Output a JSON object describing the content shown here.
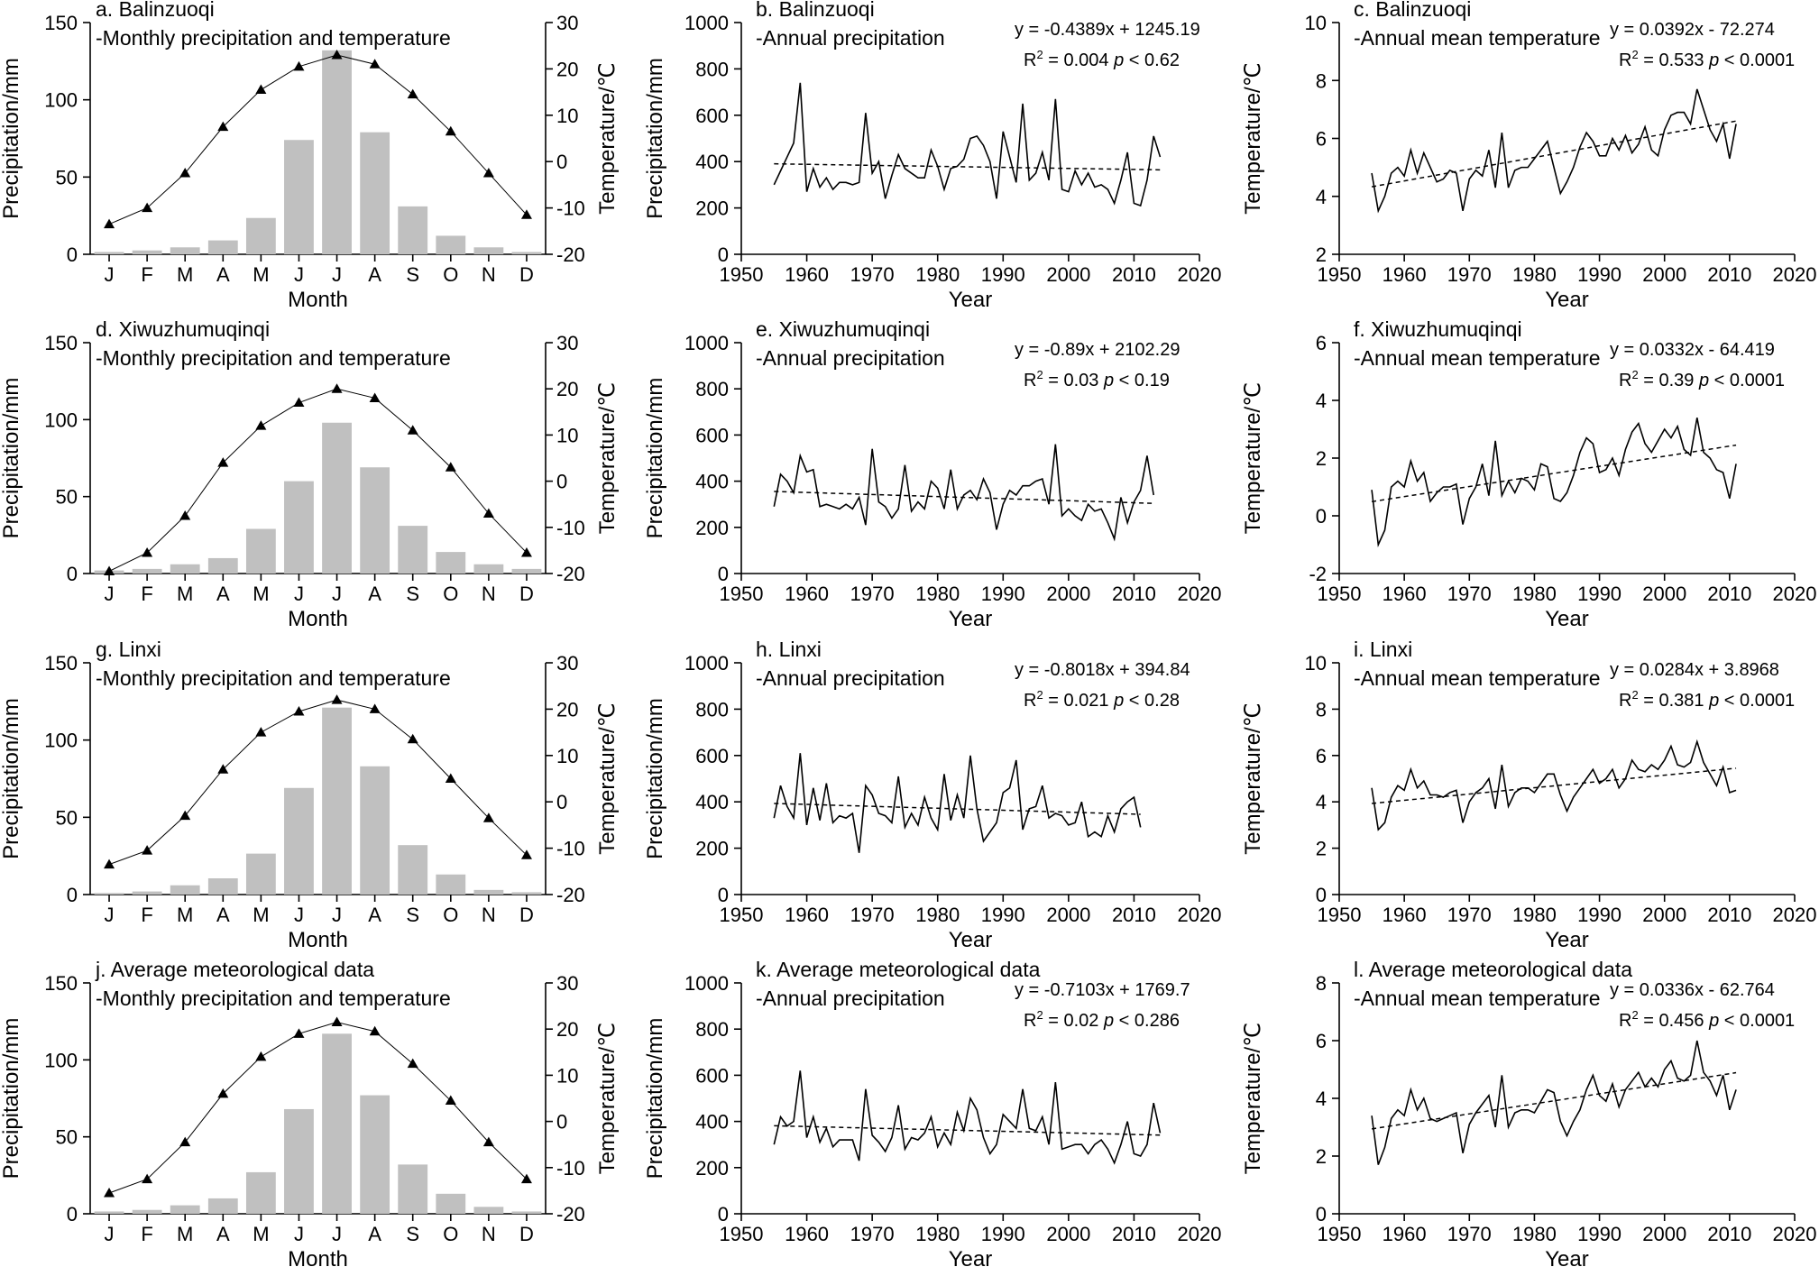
{
  "colors": {
    "bars": "#c0c0c0",
    "ink": "#000000"
  },
  "chart_data": [
    {
      "id": "a",
      "type": "bar+line",
      "title": "a. Balinzuoqi",
      "subtitle": "-Monthly precipitation and temperature",
      "xlabel": "Month",
      "ylabel": "Precipitation/mm",
      "y2label": "Temperature/℃",
      "categories": [
        "J",
        "F",
        "M",
        "A",
        "M",
        "J",
        "J",
        "A",
        "S",
        "O",
        "N",
        "D"
      ],
      "ylim": [
        0,
        150
      ],
      "yticks": [
        0,
        50,
        100,
        150
      ],
      "y2lim": [
        -20,
        30
      ],
      "y2ticks": [
        -20,
        -10,
        0,
        10,
        20,
        30
      ],
      "series": [
        {
          "kind": "bar",
          "axis": "left",
          "values": [
            1.5,
            2.5,
            4.5,
            9,
            23.5,
            74,
            132,
            79,
            31,
            12,
            4.5,
            1.5
          ]
        },
        {
          "kind": "line",
          "axis": "right",
          "marker": "triangle",
          "values": [
            -13.5,
            -10,
            -2.5,
            7.5,
            15.5,
            20.5,
            23,
            21,
            14.5,
            6.5,
            -2.5,
            -11.5
          ]
        }
      ]
    },
    {
      "id": "b",
      "type": "line",
      "title": "b. Balinzuoqi",
      "subtitle": "-Annual precipitation",
      "equation": "y = -0.4389x + 1245.19",
      "r2_prefix": "R",
      "r2_sup": "2",
      "r2_value": " = 0.004  ",
      "p_label": "p",
      "p_value": " < 0.62",
      "xlabel": "Year",
      "ylabel": "Precipitation/mm",
      "xlim": [
        1950,
        2020
      ],
      "xticks": [
        1950,
        1960,
        1970,
        1980,
        1990,
        2000,
        2010,
        2020
      ],
      "ylim": [
        0,
        1000
      ],
      "yticks": [
        0,
        200,
        400,
        600,
        800,
        1000
      ],
      "x_start": 1955,
      "values": [
        300,
        360,
        420,
        480,
        740,
        270,
        370,
        290,
        330,
        280,
        310,
        310,
        300,
        310,
        610,
        350,
        400,
        240,
        340,
        430,
        370,
        350,
        330,
        330,
        450,
        380,
        280,
        370,
        380,
        410,
        500,
        510,
        470,
        400,
        240,
        530,
        420,
        310,
        650,
        320,
        350,
        440,
        320,
        670,
        280,
        270,
        360,
        300,
        350,
        290,
        300,
        280,
        220,
        320,
        440,
        220,
        210,
        320,
        510,
        420
      ],
      "trend": [
        390.4,
        364.5
      ]
    },
    {
      "id": "c",
      "type": "line",
      "title": "c. Balinzuoqi",
      "subtitle": "-Annual mean temperature",
      "equation": "y = 0.0392x - 72.274",
      "r2_prefix": "R",
      "r2_sup": "2",
      "r2_value": " = 0.533  ",
      "p_label": "p",
      "p_value": " < 0.0001",
      "xlabel": "Year",
      "ylabel": "Temperature/℃",
      "xlim": [
        1950,
        2020
      ],
      "xticks": [
        1950,
        1960,
        1970,
        1980,
        1990,
        2000,
        2010,
        2020
      ],
      "ylim": [
        2,
        10
      ],
      "yticks": [
        2,
        4,
        6,
        8,
        10
      ],
      "x_start": 1955,
      "values": [
        4.8,
        3.5,
        4.0,
        4.8,
        5.0,
        4.7,
        5.6,
        4.8,
        5.5,
        5.0,
        4.5,
        4.6,
        4.9,
        4.8,
        3.5,
        4.6,
        4.9,
        4.7,
        5.6,
        4.3,
        6.2,
        4.3,
        4.9,
        5.0,
        5.0,
        5.3,
        5.6,
        5.9,
        5.0,
        4.1,
        4.5,
        5.0,
        5.7,
        6.2,
        5.9,
        5.4,
        5.4,
        6.0,
        5.6,
        6.1,
        5.5,
        5.8,
        6.4,
        5.6,
        5.4,
        6.3,
        6.8,
        6.9,
        6.9,
        6.5,
        7.7,
        7.0,
        6.3,
        5.9,
        6.5,
        5.3,
        6.5
      ],
      "trend": [
        4.33,
        6.6
      ]
    },
    {
      "id": "d",
      "type": "bar+line",
      "title": "d. Xiwuzhumuqinqi",
      "subtitle": "-Monthly precipitation and temperature",
      "xlabel": "Month",
      "ylabel": "Precipitation/mm",
      "y2label": "Temperature/℃",
      "categories": [
        "J",
        "F",
        "M",
        "A",
        "M",
        "J",
        "J",
        "A",
        "S",
        "O",
        "N",
        "D"
      ],
      "ylim": [
        0,
        150
      ],
      "yticks": [
        0,
        50,
        100,
        150
      ],
      "y2lim": [
        -20,
        30
      ],
      "y2ticks": [
        -20,
        -10,
        0,
        10,
        20,
        30
      ],
      "series": [
        {
          "kind": "bar",
          "axis": "left",
          "values": [
            2,
            3,
            6,
            10,
            29,
            60,
            98,
            69,
            31,
            14,
            6,
            3
          ]
        },
        {
          "kind": "line",
          "axis": "right",
          "marker": "triangle",
          "values": [
            -19.5,
            -15.5,
            -7.5,
            4,
            12,
            17,
            20,
            18,
            11,
            3,
            -7,
            -15.5
          ]
        }
      ]
    },
    {
      "id": "e",
      "type": "line",
      "title": "e. Xiwuzhumuqinqi",
      "subtitle": "-Annual precipitation",
      "equation": "y = -0.89x + 2102.29",
      "r2_prefix": "R",
      "r2_sup": "2",
      "r2_value": " = 0.03  ",
      "p_label": "p",
      "p_value": " < 0.19",
      "xlabel": "Year",
      "ylabel": "Precipitation/mm",
      "xlim": [
        1950,
        2020
      ],
      "xticks": [
        1950,
        1960,
        1970,
        1980,
        1990,
        2000,
        2010,
        2020
      ],
      "ylim": [
        0,
        1000
      ],
      "yticks": [
        0,
        200,
        400,
        600,
        800,
        1000
      ],
      "x_start": 1955,
      "values": [
        290,
        430,
        400,
        350,
        510,
        440,
        450,
        290,
        300,
        290,
        280,
        300,
        280,
        330,
        210,
        540,
        310,
        290,
        240,
        280,
        470,
        270,
        310,
        280,
        400,
        370,
        280,
        450,
        280,
        340,
        360,
        320,
        410,
        350,
        190,
        300,
        360,
        340,
        380,
        380,
        400,
        410,
        300,
        560,
        250,
        280,
        250,
        230,
        300,
        270,
        280,
        220,
        150,
        330,
        220,
        310,
        360,
        510,
        340
      ],
      "trend": [
        355.6,
        303.9
      ]
    },
    {
      "id": "f",
      "type": "line",
      "title": "f. Xiwuzhumuqinqi",
      "subtitle": "-Annual mean temperature",
      "equation": "y = 0.0332x - 64.419",
      "r2_prefix": "R",
      "r2_sup": "2",
      "r2_value": " = 0.39  ",
      "p_label": "p",
      "p_value": " < 0.0001",
      "xlabel": "Year",
      "ylabel": "Temperature/℃",
      "xlim": [
        1950,
        2020
      ],
      "xticks": [
        1950,
        1960,
        1970,
        1980,
        1990,
        2000,
        2010,
        2020
      ],
      "ylim": [
        -2,
        6
      ],
      "yticks": [
        -2,
        0,
        2,
        4,
        6
      ],
      "x_start": 1955,
      "values": [
        0.9,
        -1.0,
        -0.5,
        1.0,
        1.2,
        1.0,
        1.9,
        1.2,
        1.5,
        0.5,
        0.8,
        1.0,
        1.0,
        1.1,
        -0.3,
        0.6,
        1.0,
        1.8,
        0.7,
        2.6,
        0.7,
        1.2,
        0.8,
        1.3,
        1.2,
        0.9,
        1.8,
        1.7,
        0.6,
        0.5,
        0.8,
        1.4,
        2.2,
        2.7,
        2.5,
        1.5,
        1.6,
        2.0,
        1.4,
        2.3,
        2.9,
        3.2,
        2.5,
        2.2,
        2.6,
        3.0,
        2.7,
        3.1,
        2.3,
        2.1,
        3.4,
        2.2,
        2.0,
        1.6,
        1.5,
        0.6,
        1.8
      ],
      "trend": [
        0.49,
        2.45
      ]
    },
    {
      "id": "g",
      "type": "bar+line",
      "title": "g. Linxi",
      "subtitle": "-Monthly precipitation and temperature",
      "xlabel": "Month",
      "ylabel": "Precipitation/mm",
      "y2label": "Temperature/℃",
      "categories": [
        "J",
        "F",
        "M",
        "A",
        "M",
        "J",
        "J",
        "A",
        "S",
        "O",
        "N",
        "D"
      ],
      "ylim": [
        0,
        150
      ],
      "yticks": [
        0,
        50,
        100,
        150
      ],
      "y2lim": [
        -20,
        30
      ],
      "y2ticks": [
        -20,
        -10,
        0,
        10,
        20,
        30
      ],
      "series": [
        {
          "kind": "bar",
          "axis": "left",
          "values": [
            1,
            2,
            6,
            10.5,
            26.5,
            69,
            121,
            83,
            32,
            13,
            3,
            1.5
          ]
        },
        {
          "kind": "line",
          "axis": "right",
          "marker": "triangle",
          "values": [
            -13.5,
            -10.5,
            -3,
            7,
            15,
            19.5,
            22,
            20,
            13.5,
            5,
            -3.5,
            -11.5
          ]
        }
      ]
    },
    {
      "id": "h",
      "type": "line",
      "title": "h. Linxi",
      "subtitle": "-Annual precipitation",
      "equation": "y = -0.8018x + 394.84",
      "r2_prefix": "R",
      "r2_sup": "2",
      "r2_value": " = 0.021  ",
      "p_label": "p",
      "p_value": " < 0.28",
      "xlabel": "Year",
      "ylabel": "Precipitation/mm",
      "xlim": [
        1950,
        2020
      ],
      "xticks": [
        1950,
        1960,
        1970,
        1980,
        1990,
        2000,
        2010,
        2020
      ],
      "ylim": [
        0,
        1000
      ],
      "yticks": [
        0,
        200,
        400,
        600,
        800,
        1000
      ],
      "x_start": 1955,
      "values": [
        330,
        470,
        380,
        330,
        610,
        300,
        460,
        320,
        480,
        310,
        340,
        330,
        350,
        180,
        470,
        430,
        350,
        340,
        310,
        510,
        290,
        350,
        300,
        420,
        330,
        280,
        520,
        320,
        430,
        330,
        600,
        370,
        230,
        270,
        310,
        440,
        460,
        580,
        280,
        370,
        380,
        470,
        330,
        350,
        340,
        300,
        310,
        400,
        250,
        270,
        250,
        340,
        270,
        370,
        400,
        420,
        290
      ],
      "trend": [
        393.2,
        346.3
      ]
    },
    {
      "id": "i",
      "type": "line",
      "title": "i. Linxi",
      "subtitle": "-Annual mean temperature",
      "equation": "y = 0.0284x + 3.8968",
      "r2_prefix": "R",
      "r2_sup": "2",
      "r2_value": " = 0.381  ",
      "p_label": "p",
      "p_value": " < 0.0001",
      "xlabel": "Year",
      "ylabel": "Temperature/℃",
      "xlim": [
        1950,
        2020
      ],
      "xticks": [
        1950,
        1960,
        1970,
        1980,
        1990,
        2000,
        2010,
        2020
      ],
      "ylim": [
        0,
        10
      ],
      "yticks": [
        0,
        2,
        4,
        6,
        8,
        10
      ],
      "x_start": 1955,
      "values": [
        4.6,
        2.8,
        3.1,
        4.2,
        4.7,
        4.5,
        5.4,
        4.6,
        4.9,
        4.3,
        4.3,
        4.2,
        4.4,
        4.5,
        3.1,
        4.0,
        4.4,
        4.6,
        5.0,
        3.7,
        5.6,
        3.8,
        4.4,
        4.6,
        4.6,
        4.4,
        4.8,
        5.2,
        5.2,
        4.3,
        3.6,
        4.2,
        4.6,
        5.0,
        5.4,
        4.8,
        5.0,
        5.4,
        4.6,
        5.0,
        5.8,
        5.4,
        5.3,
        5.6,
        5.4,
        5.8,
        6.4,
        5.6,
        5.5,
        5.7,
        6.6,
        5.7,
        5.2,
        4.7,
        5.5,
        4.4,
        4.5
      ],
      "trend": [
        3.93,
        5.45
      ]
    },
    {
      "id": "j",
      "type": "bar+line",
      "title": "j. Average meteorological data",
      "subtitle": "-Monthly precipitation and temperature",
      "xlabel": "Month",
      "ylabel": "Precipitation/mm",
      "y2label": "Temperature/℃",
      "categories": [
        "J",
        "F",
        "M",
        "A",
        "M",
        "J",
        "J",
        "A",
        "S",
        "O",
        "N",
        "D"
      ],
      "ylim": [
        0,
        150
      ],
      "yticks": [
        0,
        50,
        100,
        150
      ],
      "y2lim": [
        -20,
        30
      ],
      "y2ticks": [
        -20,
        -10,
        0,
        10,
        20,
        30
      ],
      "series": [
        {
          "kind": "bar",
          "axis": "left",
          "values": [
            1.5,
            2.5,
            5.5,
            10,
            27,
            68,
            117,
            77,
            32,
            13,
            4.5,
            1.5
          ]
        },
        {
          "kind": "line",
          "axis": "right",
          "marker": "triangle",
          "values": [
            -15.5,
            -12.5,
            -4.5,
            6,
            14,
            19,
            21.5,
            19.5,
            12.5,
            4.5,
            -4.5,
            -12.5
          ]
        }
      ]
    },
    {
      "id": "k",
      "type": "line",
      "title": "k. Average meteorological data",
      "subtitle": "-Annual precipitation",
      "equation": "y = -0.7103x + 1769.7",
      "r2_prefix": "R",
      "r2_sup": "2",
      "r2_value": " = 0.02  ",
      "p_label": "p",
      "p_value": " < 0.286",
      "xlabel": "Year",
      "ylabel": "Precipitation/mm",
      "xlim": [
        1950,
        2020
      ],
      "xticks": [
        1950,
        1960,
        1970,
        1980,
        1990,
        2000,
        2010,
        2020
      ],
      "ylim": [
        0,
        1000
      ],
      "yticks": [
        0,
        200,
        400,
        600,
        800,
        1000
      ],
      "x_start": 1955,
      "values": [
        300,
        420,
        380,
        400,
        620,
        330,
        420,
        310,
        370,
        290,
        320,
        320,
        320,
        230,
        540,
        340,
        310,
        270,
        330,
        470,
        280,
        330,
        320,
        350,
        420,
        290,
        350,
        300,
        440,
        360,
        500,
        450,
        330,
        260,
        300,
        430,
        400,
        370,
        540,
        370,
        360,
        420,
        300,
        570,
        280,
        290,
        300,
        300,
        260,
        300,
        320,
        280,
        220,
        300,
        400,
        260,
        250,
        300,
        480,
        350
      ],
      "trend": [
        381.3,
        340.8
      ]
    },
    {
      "id": "l",
      "type": "line",
      "title": "l. Average meteorological data",
      "subtitle": "-Annual mean temperature",
      "equation": "y = 0.0336x - 62.764",
      "r2_prefix": "R",
      "r2_sup": "2",
      "r2_value": " = 0.456  ",
      "p_label": "p",
      "p_value": " < 0.0001",
      "xlabel": "Year",
      "ylabel": "Temperature/℃",
      "xlim": [
        1950,
        2020
      ],
      "xticks": [
        1950,
        1960,
        1970,
        1980,
        1990,
        2000,
        2010,
        2020
      ],
      "ylim": [
        0,
        8
      ],
      "yticks": [
        0,
        2,
        4,
        6,
        8
      ],
      "x_start": 1955,
      "values": [
        3.4,
        1.7,
        2.3,
        3.3,
        3.6,
        3.4,
        4.3,
        3.6,
        4.0,
        3.3,
        3.2,
        3.3,
        3.4,
        3.5,
        2.1,
        3.1,
        3.5,
        3.8,
        4.1,
        3.0,
        4.8,
        3.0,
        3.5,
        3.6,
        3.6,
        3.5,
        3.9,
        4.3,
        4.2,
        3.2,
        2.7,
        3.2,
        3.6,
        4.3,
        4.8,
        4.1,
        3.9,
        4.5,
        3.7,
        4.3,
        4.6,
        4.9,
        4.4,
        4.7,
        4.4,
        5.0,
        5.3,
        4.7,
        4.6,
        4.8,
        6.0,
        4.9,
        4.6,
        4.1,
        4.8,
        3.6,
        4.3
      ],
      "trend": [
        2.94,
        4.89
      ]
    }
  ]
}
